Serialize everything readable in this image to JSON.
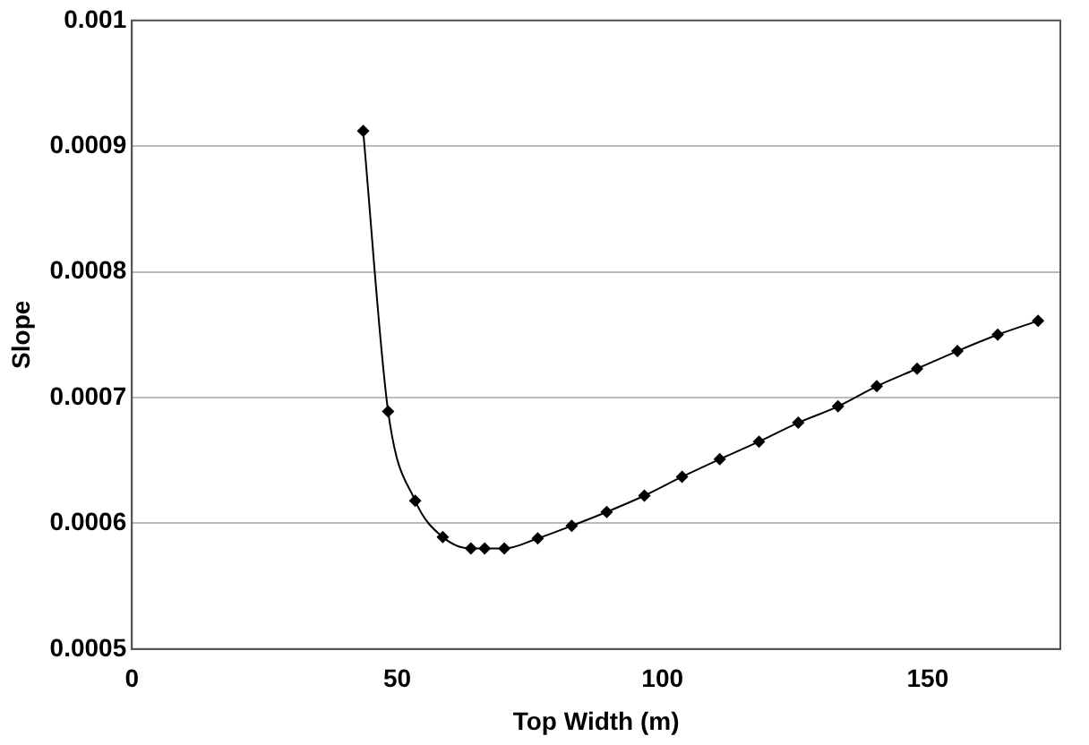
{
  "chart_data": {
    "type": "line",
    "xlabel": "Top Width (m)",
    "ylabel": "Slope",
    "x": [
      43.6,
      48.3,
      53.4,
      58.6,
      63.9,
      66.5,
      70.2,
      76.5,
      82.9,
      89.5,
      96.6,
      103.7,
      110.8,
      118.2,
      125.6,
      133.1,
      140.4,
      148,
      155.6,
      163.2,
      170.8
    ],
    "series": [
      {
        "color": "#000000",
        "values": [
          0.000912,
          0.000689,
          0.000618,
          0.000589,
          0.00058,
          0.00058,
          0.00058,
          0.000588,
          0.000598,
          0.000609,
          0.000622,
          0.000637,
          0.000651,
          0.000665,
          0.00068,
          0.000693,
          0.000709,
          0.000723,
          0.000737,
          0.00075,
          0.000761
        ]
      }
    ],
    "xlim": [
      0,
      175
    ],
    "xticks": [
      0,
      50,
      100,
      150
    ],
    "ylim": [
      0.0005,
      0.001
    ],
    "yticks": [
      0.0005,
      0.0006,
      0.0007,
      0.0008,
      0.0009,
      0.001
    ],
    "grid": "y",
    "marker": "diamond",
    "line_style": "solid"
  }
}
